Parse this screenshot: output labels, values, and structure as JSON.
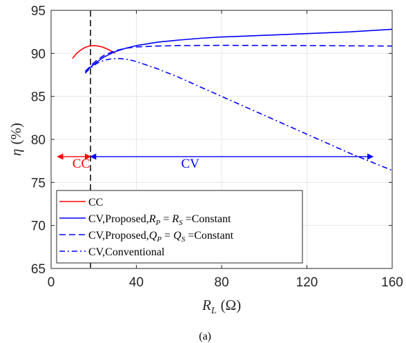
{
  "chart_data": {
    "type": "line",
    "xlabel_var": "R",
    "xlabel_sub": "L",
    "xlabel_unit": "(Ω)",
    "ylabel_var": "η",
    "ylabel_unit": "(%)",
    "xlim": [
      0,
      160
    ],
    "ylim": [
      65,
      95
    ],
    "xticks": [
      0,
      40,
      80,
      120,
      160
    ],
    "yticks": [
      65,
      70,
      75,
      80,
      85,
      90,
      95
    ],
    "grid": true,
    "legend_position": "bottom-left",
    "series": [
      {
        "name": "CC",
        "color": "#ff0000",
        "dash": "solid",
        "x": [
          10,
          12,
          14,
          16,
          18,
          20,
          22,
          24,
          26,
          28,
          30
        ],
        "y": [
          89.4,
          90.0,
          90.4,
          90.7,
          90.85,
          90.9,
          90.85,
          90.75,
          90.55,
          90.3,
          90.0
        ]
      },
      {
        "name": "CV,Proposed,R_P = R_S =Constant",
        "legend_parts": [
          "CV,Proposed,",
          "R",
          "P",
          " = ",
          "R",
          "S",
          " =Constant"
        ],
        "color": "#0000ff",
        "dash": "solid",
        "x": [
          16,
          18,
          20,
          22,
          25,
          30,
          35,
          40,
          50,
          60,
          70,
          80,
          90,
          100,
          110,
          120,
          130,
          140,
          150,
          160
        ],
        "y": [
          87.9,
          88.3,
          88.7,
          89.1,
          89.6,
          90.2,
          90.6,
          90.9,
          91.3,
          91.55,
          91.75,
          91.9,
          92.0,
          92.1,
          92.2,
          92.3,
          92.4,
          92.5,
          92.65,
          92.8
        ]
      },
      {
        "name": "CV,Proposed,Q_P = Q_S =Constant",
        "legend_parts": [
          "CV,Proposed,",
          "Q",
          "P",
          " = ",
          "Q",
          "S",
          " =Constant"
        ],
        "color": "#0000ff",
        "dash": "dashed",
        "x": [
          16,
          18,
          20,
          22,
          25,
          30,
          35,
          40,
          50,
          60,
          70,
          80,
          100,
          120,
          140,
          160
        ],
        "y": [
          87.9,
          88.4,
          88.9,
          89.3,
          89.8,
          90.3,
          90.6,
          90.75,
          90.85,
          90.9,
          90.92,
          90.93,
          90.92,
          90.9,
          90.88,
          90.85
        ]
      },
      {
        "name": "CV,Conventional",
        "color": "#0000ff",
        "dash": "dashdot",
        "x": [
          16,
          18,
          20,
          22,
          25,
          28,
          32,
          36,
          40,
          50,
          60,
          70,
          80,
          90,
          100,
          110,
          120,
          130,
          140,
          150,
          160
        ],
        "y": [
          87.7,
          88.2,
          88.6,
          88.9,
          89.2,
          89.35,
          89.4,
          89.3,
          89.05,
          88.2,
          87.2,
          86.1,
          85.0,
          83.9,
          82.8,
          81.7,
          80.6,
          79.5,
          78.4,
          77.4,
          76.4
        ]
      }
    ],
    "reference_line": {
      "x": 18.5,
      "color": "#000000",
      "dash": "dashed"
    },
    "annotations": [
      {
        "text": "CC",
        "color": "#ff0000",
        "arrow_from": 3,
        "arrow_to": 18.5,
        "arrow_y": 78,
        "label_x": 10,
        "label_y": 76.7
      },
      {
        "text": "CV",
        "color": "#0000ff",
        "arrow_from": 18.5,
        "arrow_to": 151,
        "arrow_y": 78,
        "label_x": 61,
        "label_y": 76.7
      }
    ]
  },
  "caption": "(a)"
}
